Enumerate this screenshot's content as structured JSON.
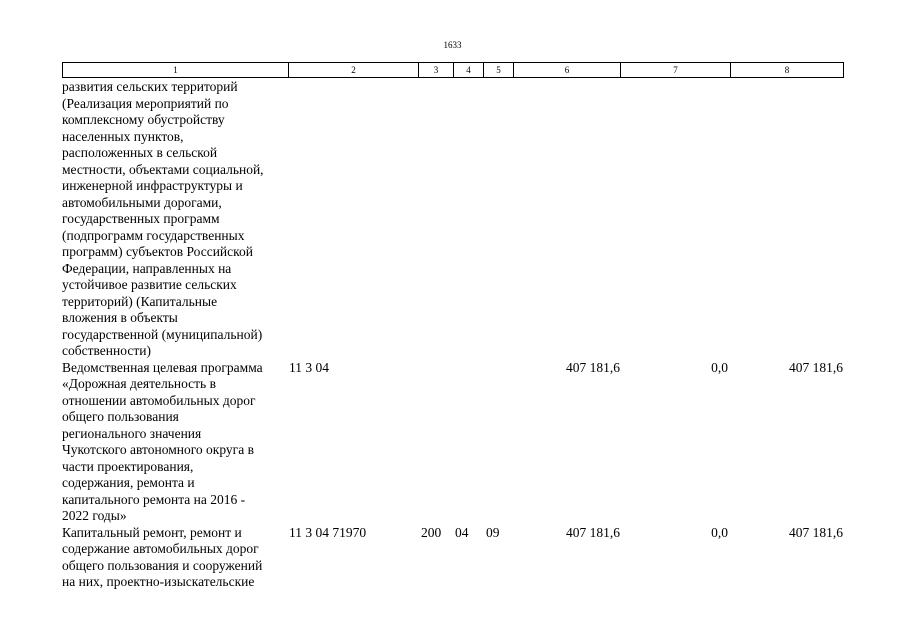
{
  "page_number": "1633",
  "table": {
    "header": [
      "1",
      "2",
      "3",
      "4",
      "5",
      "6",
      "7",
      "8"
    ],
    "rows": [
      {
        "name": [
          "развития сельских территорий",
          "(Реализация мероприятий по",
          "комплексному обустройству",
          "населенных пунктов,",
          "расположенных в сельской",
          "местности, объектами социальной,",
          "инженерной инфраструктуры и",
          "автомобильными дорогами,",
          "государственных программ",
          "(подпрограмм государственных",
          "программ) субъектов Российской",
          "Федерации, направленных на",
          "устойчивое развитие сельских",
          "территорий) (Капитальные",
          "вложения в объекты",
          "государственной (муниципальной)",
          "собственности)"
        ]
      },
      {
        "name": [
          "Ведомственная целевая программа",
          "«Дорожная деятельность в",
          "отношении автомобильных дорог",
          "общего пользования",
          "регионального значения",
          "Чукотского автономного округа в",
          "части проектирования,",
          "содержания, ремонта и",
          "капитального ремонта на 2016 -",
          "2022 годы»"
        ],
        "c2": "11 3 04",
        "c6": "407 181,6",
        "c7": "0,0",
        "c8": "407 181,6"
      },
      {
        "name": [
          "Капитальный ремонт, ремонт и",
          "содержание автомобильных дорог",
          "общего пользования и сооружений",
          "на них, проектно-изыскательские"
        ],
        "c2": "11 3 04 71970",
        "c3": "200",
        "c4": "04",
        "c5": "09",
        "c6": "407 181,6",
        "c7": "0,0",
        "c8": "407 181,6"
      }
    ]
  }
}
